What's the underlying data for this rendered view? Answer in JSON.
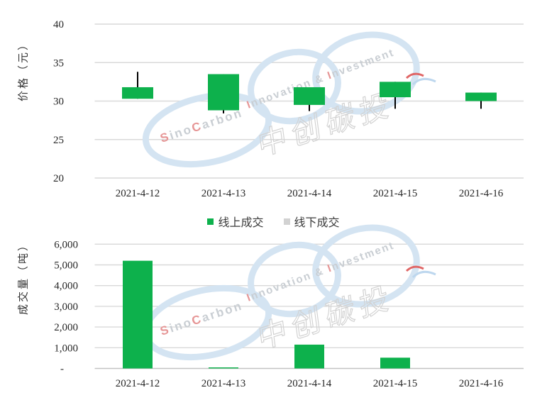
{
  "watermark": {
    "brand": "SinoCarbon",
    "tagline": "Innovation & Investment",
    "cjk": "中创碳投"
  },
  "legend": {
    "items": [
      {
        "label": "线上成交",
        "color": "#0db14c"
      },
      {
        "label": "线下成交",
        "color": "#d2d2d2"
      }
    ]
  },
  "chart_data": [
    {
      "type": "candlestick",
      "title": "",
      "ylabel": "价格（元）",
      "xlabel": "",
      "ylim": [
        20,
        40
      ],
      "yticks": [
        40,
        35,
        30,
        25,
        20
      ],
      "grid": true,
      "legend_position": "below",
      "categories": [
        "2021-4-12",
        "2021-4-13",
        "2021-4-14",
        "2021-4-15",
        "2021-4-16"
      ],
      "series": [
        {
          "name": "线上成交",
          "color": "#0db14c",
          "points": [
            {
              "box_low": 30.3,
              "box_high": 31.8,
              "high": 33.8,
              "low": 30.3
            },
            {
              "box_low": 28.8,
              "box_high": 33.5,
              "high": 33.5,
              "low": 28.4
            },
            {
              "box_low": 29.5,
              "box_high": 31.8,
              "high": 31.8,
              "low": 28.7
            },
            {
              "box_low": 30.5,
              "box_high": 32.5,
              "high": 32.5,
              "low": 29.0
            },
            {
              "box_low": 30.0,
              "box_high": 31.1,
              "high": 31.1,
              "low": 29.0
            }
          ]
        }
      ]
    },
    {
      "type": "bar",
      "title": "",
      "ylabel": "成交量（吨）",
      "xlabel": "",
      "ylim": [
        0,
        6000
      ],
      "yticks": [
        6000,
        5000,
        4000,
        3000,
        2000,
        1000,
        0
      ],
      "ytick_labels": [
        "6,000",
        "5,000",
        "4,000",
        "3,000",
        "2,000",
        "1,000",
        "-"
      ],
      "grid": true,
      "categories": [
        "2021-4-12",
        "2021-4-13",
        "2021-4-14",
        "2021-4-15",
        "2021-4-16"
      ],
      "series": [
        {
          "name": "线上成交",
          "color": "#0db14c",
          "values": [
            5200,
            50,
            1150,
            520,
            0
          ]
        }
      ]
    }
  ]
}
